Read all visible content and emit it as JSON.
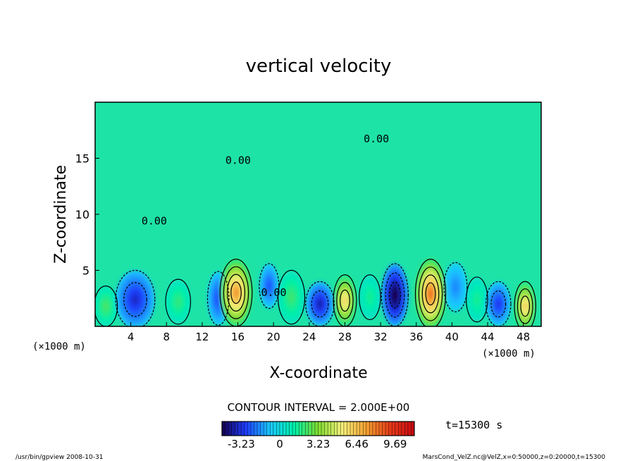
{
  "chart_data": {
    "type": "heatmap",
    "title": "vertical velocity",
    "xlabel": "X-coordinate",
    "ylabel": "Z-coordinate",
    "x_unit_left": "(×1000 m)",
    "x_unit_right": "(×1000 m)",
    "xlim": [
      0,
      50
    ],
    "ylim": [
      0,
      20
    ],
    "xticks": [
      4,
      8,
      12,
      16,
      20,
      24,
      28,
      32,
      36,
      40,
      44,
      48
    ],
    "yticks": [
      5,
      10,
      15
    ],
    "contour_labels": [
      {
        "x": 14.6,
        "y": 14.5,
        "text": "0.00"
      },
      {
        "x": 30.1,
        "y": 16.4,
        "text": "0.00"
      },
      {
        "x": 5.2,
        "y": 9.1,
        "text": "0.00"
      },
      {
        "x": 18.6,
        "y": 2.7,
        "text": "0.00"
      }
    ],
    "features": [
      {
        "x": 4.5,
        "y": 2.4,
        "value": -3.5,
        "rx": 2.2,
        "ry": 2.6
      },
      {
        "x": 15.8,
        "y": 3.0,
        "value": 7.5,
        "rx": 1.8,
        "ry": 3.0
      },
      {
        "x": 13.8,
        "y": 2.5,
        "value": -2.8,
        "rx": 1.2,
        "ry": 2.4
      },
      {
        "x": 19.5,
        "y": 3.6,
        "value": -2.6,
        "rx": 1.1,
        "ry": 2.0
      },
      {
        "x": 25.2,
        "y": 2.0,
        "value": -3.8,
        "rx": 1.6,
        "ry": 2.0
      },
      {
        "x": 28.0,
        "y": 2.3,
        "value": 6.0,
        "rx": 1.3,
        "ry": 2.3
      },
      {
        "x": 33.6,
        "y": 2.8,
        "value": -5.2,
        "rx": 1.5,
        "ry": 2.8
      },
      {
        "x": 37.6,
        "y": 2.9,
        "value": 8.3,
        "rx": 1.7,
        "ry": 3.1
      },
      {
        "x": 40.4,
        "y": 3.5,
        "value": -1.8,
        "rx": 1.3,
        "ry": 2.2
      },
      {
        "x": 45.2,
        "y": 2.0,
        "value": -3.1,
        "rx": 1.4,
        "ry": 2.0
      },
      {
        "x": 48.2,
        "y": 1.8,
        "value": 6.2,
        "rx": 1.2,
        "ry": 2.2
      },
      {
        "x": 1.2,
        "y": 1.8,
        "value": 2.4,
        "rx": 1.3,
        "ry": 1.8
      },
      {
        "x": 9.3,
        "y": 2.2,
        "value": 2.0,
        "rx": 1.4,
        "ry": 2.0
      },
      {
        "x": 22.0,
        "y": 2.6,
        "value": 2.2,
        "rx": 1.5,
        "ry": 2.4
      },
      {
        "x": 30.8,
        "y": 2.6,
        "value": 1.6,
        "rx": 1.2,
        "ry": 2.0
      },
      {
        "x": 42.8,
        "y": 2.4,
        "value": 1.6,
        "rx": 1.2,
        "ry": 2.0
      }
    ],
    "colorbar": {
      "range": [
        -4.85,
        11.3
      ],
      "tick_labels": [
        "-3.23",
        "0",
        "3.23",
        "6.46",
        "9.69"
      ],
      "tick_values": [
        -3.23,
        0,
        3.23,
        6.46,
        9.69
      ],
      "colors": [
        "#12004c",
        "#1f3dff",
        "#19c8ff",
        "#00f0a8",
        "#7fdc2e",
        "#f6f07a",
        "#f5a230",
        "#e63a18",
        "#c80810"
      ]
    },
    "legend": "none",
    "grid": false
  },
  "contour_interval": "CONTOUR INTERVAL = 2.000E+00",
  "time_label": "t=15300 s",
  "footer_left": "/usr/bin/gpview  2008-10-31",
  "footer_right": "MarsCond_VelZ.nc@VelZ,x=0:50000,z=0:20000,t=15300"
}
